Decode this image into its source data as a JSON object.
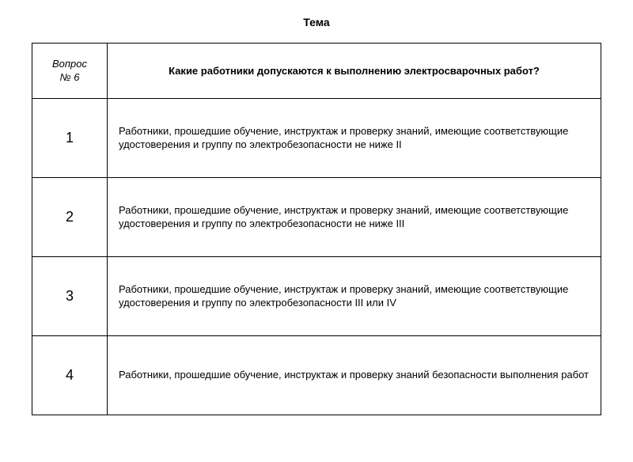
{
  "title": "Тема",
  "header": {
    "left_line1": "Вопрос",
    "left_line2": "№ 6",
    "question": "Какие работники допускаются к выполнению электросварочных работ?"
  },
  "answers": [
    {
      "number": "1",
      "text": "Работники, прошедшие обучение, инструктаж и проверку знаний, имеющие соответствующие удостоверения и группу по электробезопасности не ниже II"
    },
    {
      "number": "2",
      "text": "Работники, прошедшие обучение, инструктаж и проверку знаний, имеющие соответствующие удостоверения и группу по электробезопасности не ниже III"
    },
    {
      "number": "3",
      "text": "Работники, прошедшие обучение, инструктаж и проверку знаний, имеющие соответствующие удостоверения и группу по электробезопасности III или IV"
    },
    {
      "number": "4",
      "text": "Работники, прошедшие обучение, инструктаж и проверку знаний безопасности выполнения работ"
    }
  ],
  "colors": {
    "text": "#000000",
    "border": "#000000",
    "background": "#ffffff"
  }
}
